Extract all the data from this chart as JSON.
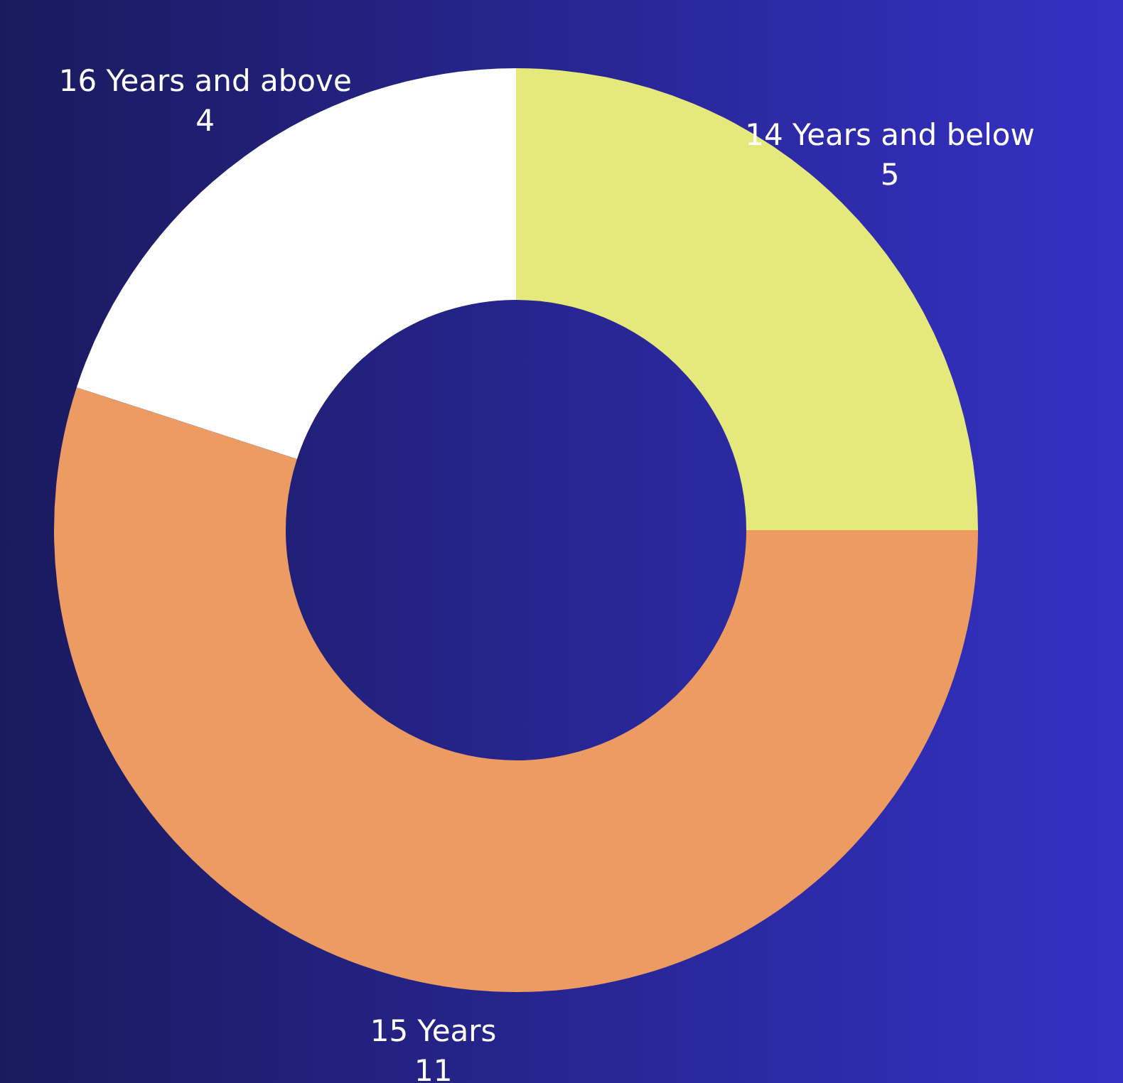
{
  "chart_data": {
    "type": "donut",
    "categories": [
      "14 Years and below",
      "15 Years",
      "16 Years and above"
    ],
    "values": [
      5,
      11,
      4
    ],
    "colors": [
      "#e5e87a",
      "#ec9b63",
      "#ffffff"
    ],
    "data_labels": true
  }
}
